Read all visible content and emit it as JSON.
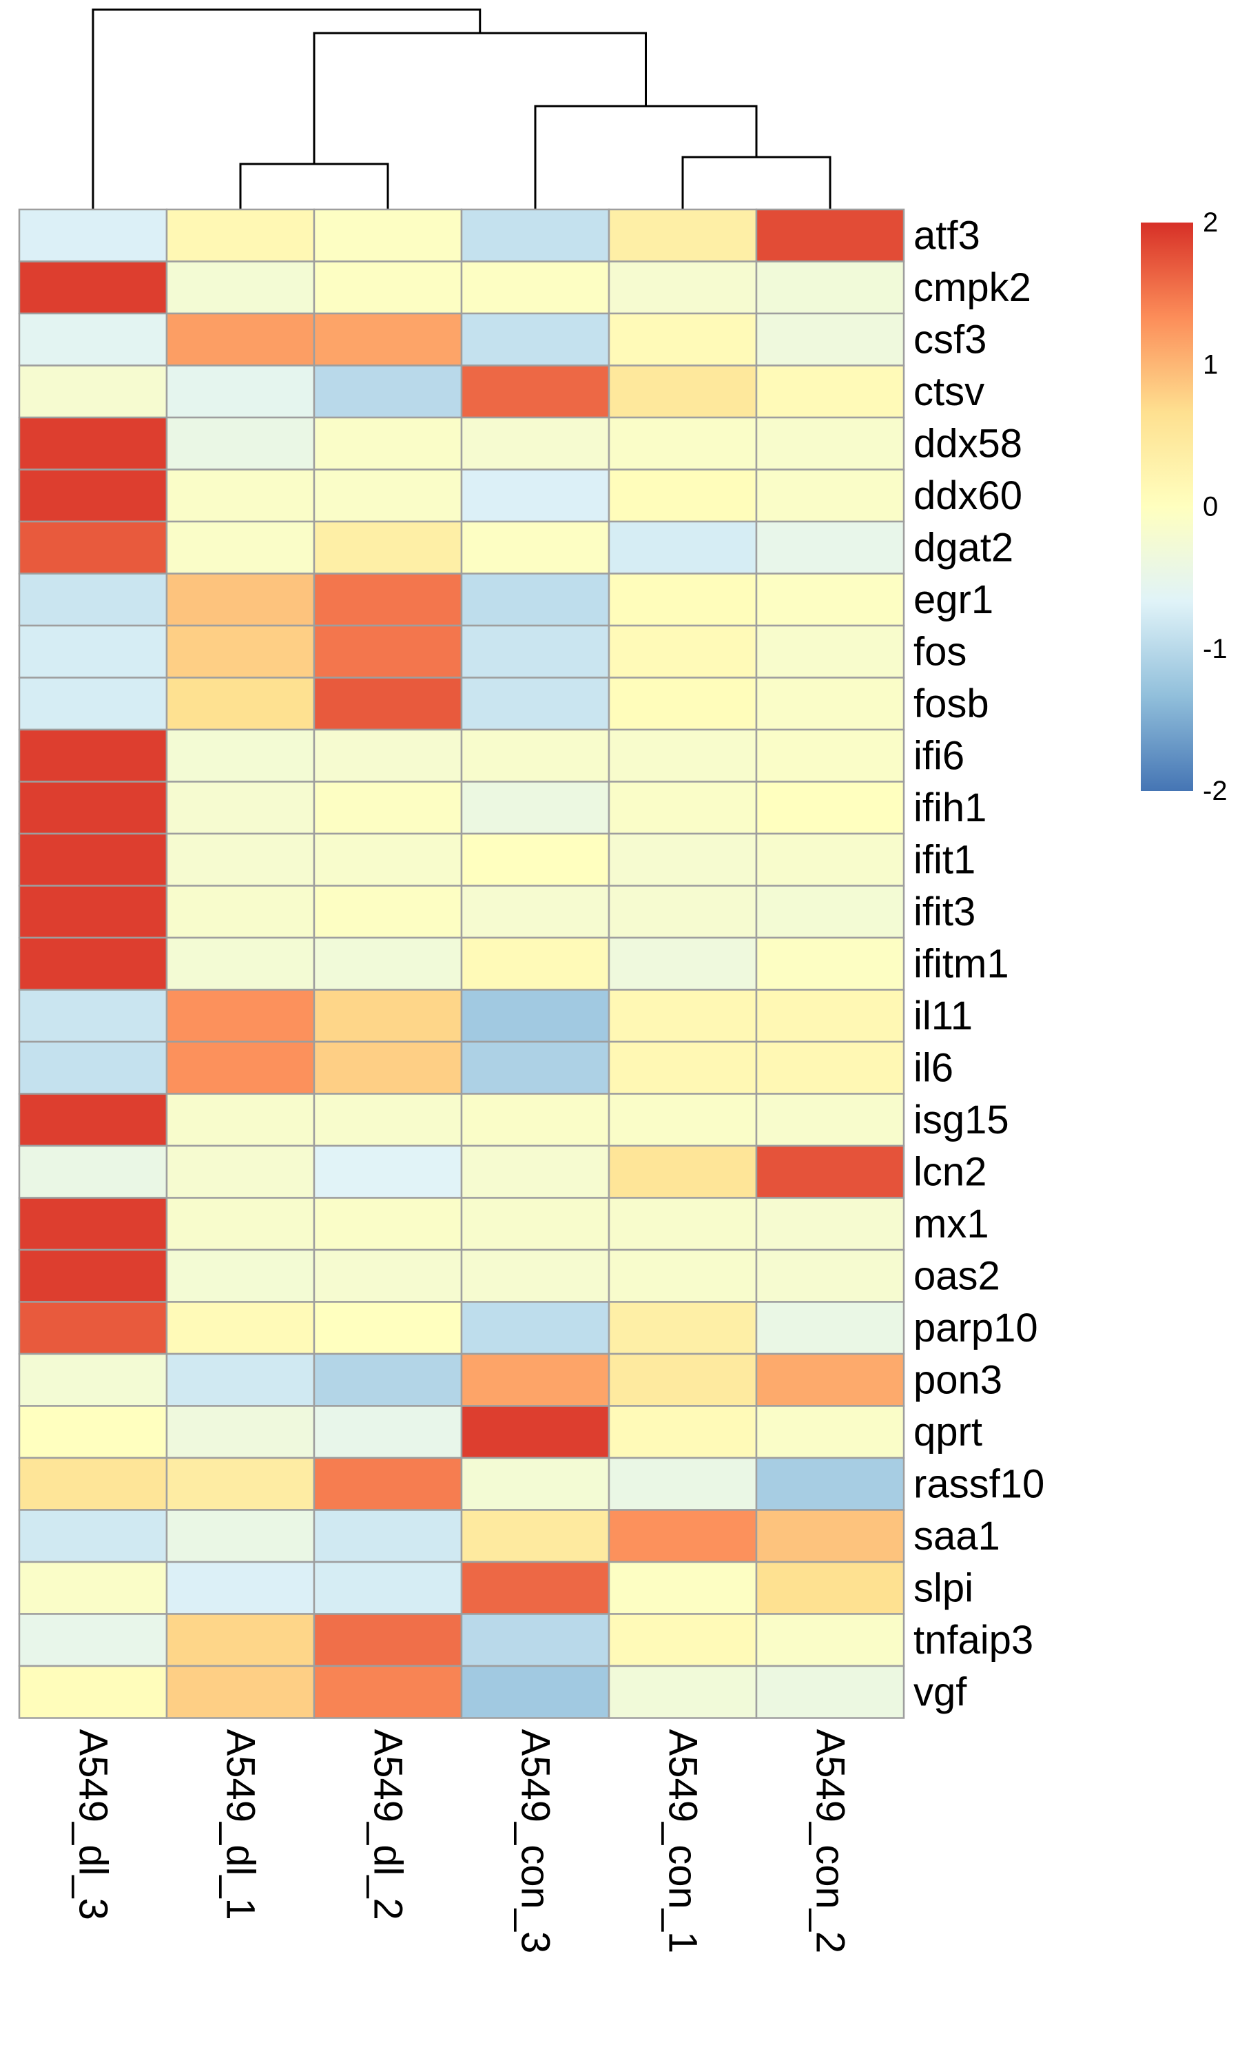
{
  "chart_data": {
    "type": "heatmap",
    "columns": [
      "A549_dl_3",
      "A549_dl_1",
      "A549_dl_2",
      "A549_con_3",
      "A549_con_1",
      "A549_con_2"
    ],
    "rows": [
      "atf3",
      "cmpk2",
      "csf3",
      "ctsv",
      "ddx58",
      "ddx60",
      "dgat2",
      "egr1",
      "fos",
      "fosb",
      "ifi6",
      "ifih1",
      "ifit1",
      "ifit3",
      "ifitm1",
      "il11",
      "il6",
      "isg15",
      "lcn2",
      "mx1",
      "oas2",
      "parp10",
      "pon3",
      "qprt",
      "rassf10",
      "saa1",
      "slpi",
      "tnfaip3",
      "vgf"
    ],
    "values": [
      [
        -0.7,
        0.15,
        -0.05,
        -0.9,
        0.35,
        1.8
      ],
      [
        1.9,
        -0.25,
        -0.05,
        -0.05,
        -0.2,
        -0.3
      ],
      [
        -0.6,
        1.2,
        1.15,
        -0.9,
        0.1,
        -0.35
      ],
      [
        -0.2,
        -0.55,
        -1.0,
        1.6,
        0.5,
        0.1
      ],
      [
        1.9,
        -0.45,
        -0.1,
        -0.2,
        -0.1,
        -0.15
      ],
      [
        1.9,
        -0.1,
        -0.1,
        -0.7,
        0.05,
        -0.1
      ],
      [
        1.7,
        -0.1,
        0.35,
        -0.05,
        -0.75,
        -0.5
      ],
      [
        -0.85,
        0.9,
        1.5,
        -0.95,
        0.05,
        -0.05
      ],
      [
        -0.75,
        0.8,
        1.5,
        -0.85,
        0.1,
        -0.15
      ],
      [
        -0.75,
        0.65,
        1.7,
        -0.85,
        0.05,
        -0.1
      ],
      [
        1.9,
        -0.25,
        -0.2,
        -0.15,
        -0.15,
        -0.1
      ],
      [
        1.9,
        -0.2,
        -0.05,
        -0.4,
        -0.1,
        0.0
      ],
      [
        1.9,
        -0.2,
        -0.15,
        0.0,
        -0.2,
        -0.15
      ],
      [
        1.9,
        -0.15,
        -0.05,
        -0.2,
        -0.2,
        -0.25
      ],
      [
        1.9,
        -0.25,
        -0.3,
        0.1,
        -0.35,
        -0.05
      ],
      [
        -0.85,
        1.3,
        0.75,
        -1.2,
        0.15,
        0.15
      ],
      [
        -0.9,
        1.3,
        0.8,
        -1.1,
        0.15,
        0.15
      ],
      [
        1.9,
        -0.15,
        -0.15,
        -0.1,
        -0.1,
        -0.15
      ],
      [
        -0.45,
        -0.2,
        -0.65,
        -0.2,
        0.55,
        1.75
      ],
      [
        1.9,
        -0.15,
        -0.1,
        -0.15,
        -0.15,
        -0.2
      ],
      [
        1.9,
        -0.25,
        -0.2,
        -0.2,
        -0.15,
        -0.2
      ],
      [
        1.7,
        0.1,
        0.0,
        -0.95,
        0.35,
        -0.45
      ],
      [
        -0.25,
        -0.8,
        -1.05,
        1.15,
        0.45,
        1.1
      ],
      [
        0.0,
        -0.35,
        -0.5,
        1.9,
        0.1,
        -0.1
      ],
      [
        0.55,
        0.4,
        1.45,
        -0.25,
        -0.45,
        -1.15
      ],
      [
        -0.8,
        -0.45,
        -0.8,
        0.45,
        1.3,
        0.9
      ],
      [
        -0.1,
        -0.7,
        -0.75,
        1.6,
        -0.05,
        0.65
      ],
      [
        -0.5,
        0.75,
        1.55,
        -1.0,
        0.1,
        -0.1
      ],
      [
        0.05,
        0.8,
        1.4,
        -1.2,
        -0.3,
        -0.4
      ]
    ],
    "colorscale": {
      "min": -2,
      "max": 2,
      "ticks": [
        "2",
        "1",
        "0",
        "-1",
        "-2"
      ],
      "stops": [
        "#4575b4",
        "#91bfdb",
        "#e0f3f8",
        "#ffffbf",
        "#fee090",
        "#fc8d59",
        "#d73027"
      ]
    },
    "column_dendrogram": true,
    "legend_position": "top-right",
    "title": "",
    "xlabel": "",
    "ylabel": ""
  }
}
